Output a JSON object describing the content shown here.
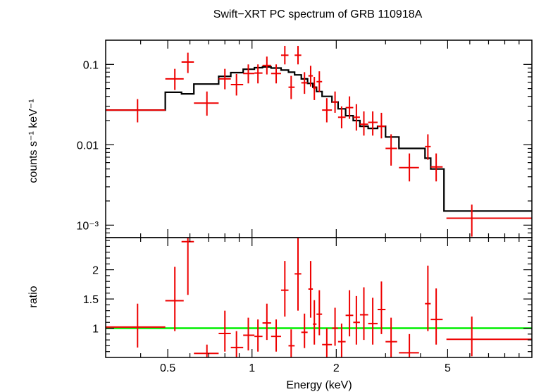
{
  "chart_data": {
    "type": "scatter",
    "title": "Swift−XRT PC spectrum of GRB 110918A",
    "xlabel": "Energy (keV)",
    "x_scale": "log",
    "xlim": [
      0.3,
      10
    ],
    "x_ticks": [
      {
        "value": 0.5,
        "label": "0.5"
      },
      {
        "value": 1,
        "label": "1"
      },
      {
        "value": 2,
        "label": "2"
      },
      {
        "value": 5,
        "label": "5"
      }
    ],
    "colors": {
      "data": "#ee0000",
      "model": "#000000",
      "unity": "#00ee00",
      "axes": "#000000"
    },
    "panels": [
      {
        "name": "spectrum",
        "ylabel": "counts s⁻¹ keV⁻¹",
        "y_scale": "log",
        "ylim": [
          0.0007,
          0.2
        ],
        "y_ticks": [
          {
            "value": 0.1,
            "label": "0.1"
          },
          {
            "value": 0.01,
            "label": "0.01"
          },
          {
            "value": 0.001,
            "label": "10⁻³"
          }
        ],
        "data": [
          {
            "x": 0.39,
            "xlo": 0.3,
            "xhi": 0.49,
            "y": 0.027,
            "ylo": 0.019,
            "yhi": 0.037
          },
          {
            "x": 0.53,
            "xlo": 0.49,
            "xhi": 0.57,
            "y": 0.066,
            "ylo": 0.048,
            "yhi": 0.088
          },
          {
            "x": 0.59,
            "xlo": 0.56,
            "xhi": 0.62,
            "y": 0.107,
            "ylo": 0.078,
            "yhi": 0.14
          },
          {
            "x": 0.69,
            "xlo": 0.62,
            "xhi": 0.76,
            "y": 0.033,
            "ylo": 0.023,
            "yhi": 0.046
          },
          {
            "x": 0.8,
            "xlo": 0.76,
            "xhi": 0.84,
            "y": 0.066,
            "ylo": 0.049,
            "yhi": 0.088
          },
          {
            "x": 0.88,
            "xlo": 0.84,
            "xhi": 0.93,
            "y": 0.056,
            "ylo": 0.041,
            "yhi": 0.076
          },
          {
            "x": 0.97,
            "xlo": 0.93,
            "xhi": 1.02,
            "y": 0.077,
            "ylo": 0.058,
            "yhi": 0.1
          },
          {
            "x": 1.05,
            "xlo": 1.02,
            "xhi": 1.09,
            "y": 0.078,
            "ylo": 0.058,
            "yhi": 0.1
          },
          {
            "x": 1.13,
            "xlo": 1.09,
            "xhi": 1.17,
            "y": 0.097,
            "ylo": 0.075,
            "yhi": 0.125
          },
          {
            "x": 1.22,
            "xlo": 1.17,
            "xhi": 1.27,
            "y": 0.077,
            "ylo": 0.058,
            "yhi": 0.1
          },
          {
            "x": 1.31,
            "xlo": 1.27,
            "xhi": 1.35,
            "y": 0.13,
            "ylo": 0.1,
            "yhi": 0.17
          },
          {
            "x": 1.38,
            "xlo": 1.35,
            "xhi": 1.42,
            "y": 0.052,
            "ylo": 0.037,
            "yhi": 0.072
          },
          {
            "x": 1.46,
            "xlo": 1.42,
            "xhi": 1.5,
            "y": 0.13,
            "ylo": 0.1,
            "yhi": 0.17
          },
          {
            "x": 1.54,
            "xlo": 1.5,
            "xhi": 1.58,
            "y": 0.059,
            "ylo": 0.043,
            "yhi": 0.08
          },
          {
            "x": 1.62,
            "xlo": 1.59,
            "xhi": 1.65,
            "y": 0.072,
            "ylo": 0.053,
            "yhi": 0.096
          },
          {
            "x": 1.67,
            "xlo": 1.65,
            "xhi": 1.7,
            "y": 0.051,
            "ylo": 0.036,
            "yhi": 0.07
          },
          {
            "x": 1.74,
            "xlo": 1.7,
            "xhi": 1.78,
            "y": 0.061,
            "ylo": 0.045,
            "yhi": 0.082
          },
          {
            "x": 1.85,
            "xlo": 1.78,
            "xhi": 1.93,
            "y": 0.027,
            "ylo": 0.019,
            "yhi": 0.038
          },
          {
            "x": 1.98,
            "xlo": 1.93,
            "xhi": 2.03,
            "y": 0.034,
            "ylo": 0.025,
            "yhi": 0.046
          },
          {
            "x": 2.09,
            "xlo": 2.03,
            "xhi": 2.16,
            "y": 0.022,
            "ylo": 0.016,
            "yhi": 0.03
          },
          {
            "x": 2.23,
            "xlo": 2.16,
            "xhi": 2.3,
            "y": 0.029,
            "ylo": 0.021,
            "yhi": 0.04
          },
          {
            "x": 2.36,
            "xlo": 2.3,
            "xhi": 2.43,
            "y": 0.022,
            "ylo": 0.015,
            "yhi": 0.032
          },
          {
            "x": 2.51,
            "xlo": 2.43,
            "xhi": 2.6,
            "y": 0.018,
            "ylo": 0.013,
            "yhi": 0.026
          },
          {
            "x": 2.7,
            "xlo": 2.6,
            "xhi": 2.81,
            "y": 0.019,
            "ylo": 0.013,
            "yhi": 0.026
          },
          {
            "x": 2.9,
            "xlo": 2.81,
            "xhi": 3.0,
            "y": 0.017,
            "ylo": 0.012,
            "yhi": 0.025
          },
          {
            "x": 3.14,
            "xlo": 3.0,
            "xhi": 3.3,
            "y": 0.009,
            "ylo": 0.0055,
            "yhi": 0.0135
          },
          {
            "x": 3.65,
            "xlo": 3.35,
            "xhi": 3.95,
            "y": 0.0052,
            "ylo": 0.0035,
            "yhi": 0.0078
          },
          {
            "x": 4.25,
            "xlo": 4.15,
            "xhi": 4.35,
            "y": 0.0095,
            "ylo": 0.0065,
            "yhi": 0.0135
          },
          {
            "x": 4.55,
            "xlo": 4.35,
            "xhi": 4.8,
            "y": 0.0053,
            "ylo": 0.0035,
            "yhi": 0.0078
          },
          {
            "x": 6.1,
            "xlo": 4.95,
            "xhi": 10.0,
            "y": 0.00122,
            "ylo": 0.00072,
            "yhi": 0.0018
          }
        ],
        "model": [
          {
            "x0": 0.3,
            "x1": 0.49,
            "y": 0.027
          },
          {
            "x0": 0.49,
            "x1": 0.56,
            "y": 0.045
          },
          {
            "x0": 0.56,
            "x1": 0.62,
            "y": 0.043
          },
          {
            "x0": 0.62,
            "x1": 0.67,
            "y": 0.057
          },
          {
            "x0": 0.67,
            "x1": 0.76,
            "y": 0.057
          },
          {
            "x0": 0.76,
            "x1": 0.84,
            "y": 0.071
          },
          {
            "x0": 0.84,
            "x1": 0.93,
            "y": 0.079
          },
          {
            "x0": 0.93,
            "x1": 1.02,
            "y": 0.087
          },
          {
            "x0": 1.02,
            "x1": 1.09,
            "y": 0.091
          },
          {
            "x0": 1.09,
            "x1": 1.17,
            "y": 0.093
          },
          {
            "x0": 1.17,
            "x1": 1.27,
            "y": 0.09
          },
          {
            "x0": 1.27,
            "x1": 1.35,
            "y": 0.085
          },
          {
            "x0": 1.35,
            "x1": 1.42,
            "y": 0.08
          },
          {
            "x0": 1.42,
            "x1": 1.5,
            "y": 0.074
          },
          {
            "x0": 1.5,
            "x1": 1.58,
            "y": 0.066
          },
          {
            "x0": 1.58,
            "x1": 1.65,
            "y": 0.058
          },
          {
            "x0": 1.65,
            "x1": 1.7,
            "y": 0.052
          },
          {
            "x0": 1.7,
            "x1": 1.78,
            "y": 0.046
          },
          {
            "x0": 1.78,
            "x1": 1.93,
            "y": 0.04
          },
          {
            "x0": 1.93,
            "x1": 2.03,
            "y": 0.034
          },
          {
            "x0": 2.03,
            "x1": 2.16,
            "y": 0.028
          },
          {
            "x0": 2.16,
            "x1": 2.3,
            "y": 0.023
          },
          {
            "x0": 2.3,
            "x1": 2.43,
            "y": 0.02
          },
          {
            "x0": 2.43,
            "x1": 2.6,
            "y": 0.017
          },
          {
            "x0": 2.6,
            "x1": 2.81,
            "y": 0.016
          },
          {
            "x0": 2.81,
            "x1": 3.0,
            "y": 0.017
          },
          {
            "x0": 3.0,
            "x1": 3.35,
            "y": 0.0125
          },
          {
            "x0": 3.35,
            "x1": 4.15,
            "y": 0.009
          },
          {
            "x0": 4.15,
            "x1": 4.35,
            "y": 0.0068
          },
          {
            "x0": 4.35,
            "x1": 4.85,
            "y": 0.005
          },
          {
            "x0": 4.85,
            "x1": 10.0,
            "y": 0.0015
          }
        ]
      },
      {
        "name": "ratio",
        "ylabel": "ratio",
        "y_scale": "linear",
        "ylim": [
          0.5,
          2.55
        ],
        "y_ticks": [
          {
            "value": 1,
            "label": "1"
          },
          {
            "value": 1.5,
            "label": "1.5"
          },
          {
            "value": 2,
            "label": "2"
          }
        ],
        "reference_line": 1.0,
        "data": [
          {
            "x": 0.39,
            "xlo": 0.3,
            "xhi": 0.49,
            "y": 1.02,
            "ylo": 0.67,
            "yhi": 1.42
          },
          {
            "x": 0.53,
            "xlo": 0.49,
            "xhi": 0.57,
            "y": 1.47,
            "ylo": 0.95,
            "yhi": 2.05
          },
          {
            "x": 0.59,
            "xlo": 0.56,
            "xhi": 0.62,
            "y": 2.48,
            "ylo": 1.57,
            "yhi": 2.55
          },
          {
            "x": 0.69,
            "xlo": 0.62,
            "xhi": 0.76,
            "y": 0.57,
            "ylo": 0.45,
            "yhi": 0.72
          },
          {
            "x": 0.8,
            "xlo": 0.76,
            "xhi": 0.84,
            "y": 0.91,
            "ylo": 0.6,
            "yhi": 1.3
          },
          {
            "x": 0.88,
            "xlo": 0.84,
            "xhi": 0.93,
            "y": 0.67,
            "ylo": 0.45,
            "yhi": 0.95
          },
          {
            "x": 0.97,
            "xlo": 0.93,
            "xhi": 1.02,
            "y": 0.88,
            "ylo": 0.62,
            "yhi": 1.18
          },
          {
            "x": 1.05,
            "xlo": 1.02,
            "xhi": 1.09,
            "y": 0.86,
            "ylo": 0.6,
            "yhi": 1.15
          },
          {
            "x": 1.13,
            "xlo": 1.09,
            "xhi": 1.17,
            "y": 1.09,
            "ylo": 0.8,
            "yhi": 1.42
          },
          {
            "x": 1.22,
            "xlo": 1.17,
            "xhi": 1.27,
            "y": 0.86,
            "ylo": 0.6,
            "yhi": 1.15
          },
          {
            "x": 1.31,
            "xlo": 1.27,
            "xhi": 1.35,
            "y": 1.65,
            "ylo": 1.2,
            "yhi": 2.15
          },
          {
            "x": 1.38,
            "xlo": 1.35,
            "xhi": 1.42,
            "y": 0.7,
            "ylo": 0.48,
            "yhi": 0.98
          },
          {
            "x": 1.46,
            "xlo": 1.42,
            "xhi": 1.5,
            "y": 1.93,
            "ylo": 1.3,
            "yhi": 2.55
          },
          {
            "x": 1.54,
            "xlo": 1.5,
            "xhi": 1.58,
            "y": 0.93,
            "ylo": 0.66,
            "yhi": 1.25
          },
          {
            "x": 1.62,
            "xlo": 1.59,
            "xhi": 1.65,
            "y": 1.67,
            "ylo": 1.18,
            "yhi": 2.15
          },
          {
            "x": 1.67,
            "xlo": 1.65,
            "xhi": 1.7,
            "y": 1.07,
            "ylo": 0.72,
            "yhi": 1.48
          },
          {
            "x": 1.74,
            "xlo": 1.7,
            "xhi": 1.78,
            "y": 1.24,
            "ylo": 0.88,
            "yhi": 1.65
          },
          {
            "x": 1.85,
            "xlo": 1.78,
            "xhi": 1.93,
            "y": 0.72,
            "ylo": 0.48,
            "yhi": 1.0
          },
          {
            "x": 1.98,
            "xlo": 1.93,
            "xhi": 2.03,
            "y": 1.0,
            "ylo": 0.7,
            "yhi": 1.35
          },
          {
            "x": 2.09,
            "xlo": 2.03,
            "xhi": 2.16,
            "y": 0.77,
            "ylo": 0.5,
            "yhi": 1.08
          },
          {
            "x": 2.23,
            "xlo": 2.16,
            "xhi": 2.3,
            "y": 1.22,
            "ylo": 0.86,
            "yhi": 1.65
          },
          {
            "x": 2.36,
            "xlo": 2.3,
            "xhi": 2.43,
            "y": 1.1,
            "ylo": 0.72,
            "yhi": 1.55
          },
          {
            "x": 2.51,
            "xlo": 2.43,
            "xhi": 2.6,
            "y": 1.23,
            "ylo": 0.8,
            "yhi": 1.7
          },
          {
            "x": 2.7,
            "xlo": 2.6,
            "xhi": 2.81,
            "y": 1.08,
            "ylo": 0.72,
            "yhi": 1.52
          },
          {
            "x": 2.9,
            "xlo": 2.81,
            "xhi": 3.0,
            "y": 1.32,
            "ylo": 0.9,
            "yhi": 1.8
          },
          {
            "x": 3.14,
            "xlo": 3.0,
            "xhi": 3.3,
            "y": 0.77,
            "ylo": 0.45,
            "yhi": 1.18
          },
          {
            "x": 3.65,
            "xlo": 3.35,
            "xhi": 3.95,
            "y": 0.58,
            "ylo": 0.4,
            "yhi": 0.9
          },
          {
            "x": 4.25,
            "xlo": 4.15,
            "xhi": 4.35,
            "y": 1.42,
            "ylo": 0.95,
            "yhi": 2.07
          },
          {
            "x": 4.55,
            "xlo": 4.35,
            "xhi": 4.8,
            "y": 1.15,
            "ylo": 0.72,
            "yhi": 1.68
          },
          {
            "x": 6.1,
            "xlo": 4.95,
            "xhi": 10.0,
            "y": 0.81,
            "ylo": 0.52,
            "yhi": 1.2
          }
        ]
      }
    ]
  }
}
